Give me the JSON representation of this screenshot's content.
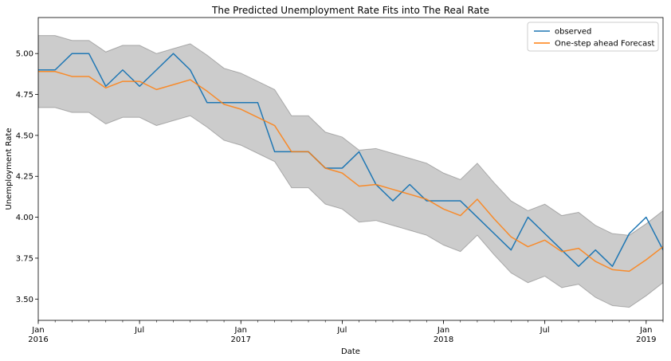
{
  "chart_data": {
    "type": "line",
    "title": "The Predicted Unemployment Rate Fits into The Real Rate",
    "xlabel": "Date",
    "ylabel": "Unemployment Rate",
    "x_range": [
      "2016-01",
      "2019-02"
    ],
    "ylim": [
      3.37,
      5.22
    ],
    "y_ticks": [
      "3.50",
      "3.75",
      "4.00",
      "4.25",
      "4.50",
      "4.75",
      "5.00"
    ],
    "x_ticks": [
      {
        "date": "2016-01",
        "label": "Jan",
        "sublabel": "2016"
      },
      {
        "date": "2016-07",
        "label": "Jul",
        "sublabel": ""
      },
      {
        "date": "2017-01",
        "label": "Jan",
        "sublabel": "2017"
      },
      {
        "date": "2017-07",
        "label": "Jul",
        "sublabel": ""
      },
      {
        "date": "2018-01",
        "label": "Jan",
        "sublabel": "2018"
      },
      {
        "date": "2018-07",
        "label": "Jul",
        "sublabel": ""
      },
      {
        "date": "2019-01",
        "label": "Jan",
        "sublabel": "2019"
      }
    ],
    "grid": false,
    "legend_position": "top-right",
    "x": [
      "2016-01",
      "2016-02",
      "2016-03",
      "2016-04",
      "2016-05",
      "2016-06",
      "2016-07",
      "2016-08",
      "2016-09",
      "2016-10",
      "2016-11",
      "2016-12",
      "2017-01",
      "2017-02",
      "2017-03",
      "2017-04",
      "2017-05",
      "2017-06",
      "2017-07",
      "2017-08",
      "2017-09",
      "2017-10",
      "2017-11",
      "2017-12",
      "2018-01",
      "2018-02",
      "2018-03",
      "2018-04",
      "2018-05",
      "2018-06",
      "2018-07",
      "2018-08",
      "2018-09",
      "2018-10",
      "2018-11",
      "2018-12",
      "2019-01",
      "2019-02"
    ],
    "series": [
      {
        "name": "observed",
        "color": "#1f77b4",
        "values": [
          4.9,
          4.9,
          5.0,
          5.0,
          4.8,
          4.9,
          4.8,
          4.9,
          5.0,
          4.9,
          4.7,
          4.7,
          4.7,
          4.7,
          4.4,
          4.4,
          4.4,
          4.3,
          4.3,
          4.4,
          4.2,
          4.1,
          4.2,
          4.1,
          4.1,
          4.1,
          4.0,
          3.9,
          3.8,
          4.0,
          3.9,
          3.8,
          3.7,
          3.8,
          3.7,
          3.9,
          4.0,
          3.8
        ]
      },
      {
        "name": "One-step ahead Forecast",
        "color": "#ff7f0e",
        "values": [
          4.89,
          4.89,
          4.86,
          4.86,
          4.79,
          4.83,
          4.83,
          4.78,
          4.81,
          4.84,
          4.77,
          4.69,
          4.66,
          4.61,
          4.56,
          4.4,
          4.4,
          4.3,
          4.27,
          4.19,
          4.2,
          4.17,
          4.14,
          4.11,
          4.05,
          4.01,
          4.11,
          3.99,
          3.88,
          3.82,
          3.86,
          3.79,
          3.81,
          3.73,
          3.68,
          3.67,
          3.74,
          3.82
        ]
      }
    ],
    "confidence_band": {
      "color": "#000000",
      "opacity": 0.2,
      "upper": [
        5.11,
        5.11,
        5.08,
        5.08,
        5.01,
        5.05,
        5.05,
        5.0,
        5.03,
        5.06,
        4.99,
        4.91,
        4.88,
        4.83,
        4.78,
        4.62,
        4.62,
        4.52,
        4.49,
        4.41,
        4.42,
        4.39,
        4.36,
        4.33,
        4.27,
        4.23,
        4.33,
        4.21,
        4.1,
        4.04,
        4.08,
        4.01,
        4.03,
        3.95,
        3.9,
        3.89,
        3.96,
        4.04
      ],
      "lower": [
        4.67,
        4.67,
        4.64,
        4.64,
        4.57,
        4.61,
        4.61,
        4.56,
        4.59,
        4.62,
        4.55,
        4.47,
        4.44,
        4.39,
        4.34,
        4.18,
        4.18,
        4.08,
        4.05,
        3.97,
        3.98,
        3.95,
        3.92,
        3.89,
        3.83,
        3.79,
        3.89,
        3.77,
        3.66,
        3.6,
        3.64,
        3.57,
        3.59,
        3.51,
        3.46,
        3.45,
        3.52,
        3.6
      ]
    }
  }
}
